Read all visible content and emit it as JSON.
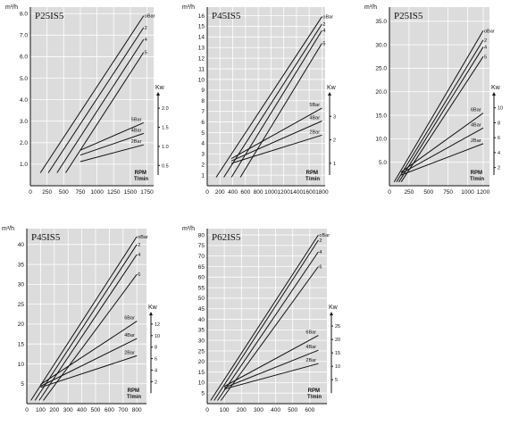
{
  "chart_data": [
    {
      "type": "line",
      "title": "P25IS5",
      "ylabel": "m³/h",
      "x_label": "RPM",
      "x_unit": "T/min",
      "y2_label": "Kw",
      "xlim": [
        0,
        1850
      ],
      "ylim": [
        0,
        8.3
      ],
      "x_ticks": [
        0,
        250,
        500,
        750,
        1000,
        1250,
        1500,
        1750
      ],
      "x_tick_labels": [
        "0",
        "250",
        "500",
        "750",
        "1000",
        "1250",
        "1500",
        "1750"
      ],
      "y_ticks": [
        1,
        2,
        3,
        4,
        5,
        6,
        7,
        8
      ],
      "y_tick_labels": [
        "1.0",
        "2.0",
        "3.0",
        "4.0",
        "5.0",
        "6.0",
        "7.0",
        "8.0"
      ],
      "y2_ticks": [
        0.5,
        1,
        1.5,
        2
      ],
      "y2_tick_labels": [
        "0.5",
        "1.0",
        "1.5",
        "2.0"
      ],
      "y2_range": [
        0.25,
        2.4
      ],
      "flow_series": [
        {
          "name": "oBar",
          "x": [
            150,
            1700
          ],
          "y": [
            0.6,
            7.9
          ]
        },
        {
          "name": "2",
          "x": [
            270,
            1700
          ],
          "y": [
            0.6,
            7.35
          ]
        },
        {
          "name": "4",
          "x": [
            400,
            1700
          ],
          "y": [
            0.6,
            6.8
          ]
        },
        {
          "name": "5",
          "x": [
            530,
            1700
          ],
          "y": [
            0.6,
            6.2
          ]
        }
      ],
      "power_series": [
        {
          "name": "5Bar",
          "x": [
            750,
            1700
          ],
          "y": [
            0.9,
            1.62
          ]
        },
        {
          "name": "4Bar",
          "x": [
            750,
            1700
          ],
          "y": [
            0.77,
            1.34
          ]
        },
        {
          "name": "2Bar",
          "x": [
            750,
            1700
          ],
          "y": [
            0.6,
            1.04
          ]
        }
      ]
    },
    {
      "type": "line",
      "title": "P45IS5",
      "ylabel": "m³/h",
      "x_label": "RPM",
      "x_unit": "T/min",
      "y2_label": "Kw",
      "xlim": [
        0,
        1850
      ],
      "ylim": [
        0,
        16.8
      ],
      "x_ticks": [
        0,
        200,
        400,
        600,
        800,
        1000,
        1200,
        1400,
        1600,
        1800
      ],
      "x_tick_labels": [
        "0",
        "200",
        "400",
        "600",
        "800",
        "1000",
        "1200",
        "1400",
        "1600",
        "1800"
      ],
      "y_ticks": [
        1,
        2,
        3,
        4,
        5,
        6,
        7,
        8,
        9,
        10,
        11,
        12,
        13,
        14,
        15,
        16
      ],
      "y_tick_labels": [
        "1",
        "2",
        "3",
        "4",
        "5",
        "6",
        "7",
        "8",
        "9",
        "10",
        "11",
        "12",
        "13",
        "14",
        "15",
        "16"
      ],
      "y2_ticks": [
        1,
        2,
        3
      ],
      "y2_tick_labels": [
        "1",
        "2",
        "3"
      ],
      "y2_range": [
        0.5,
        4.0
      ],
      "flow_series": [
        {
          "name": "oBar",
          "x": [
            140,
            1800
          ],
          "y": [
            0.8,
            15.9
          ]
        },
        {
          "name": "2",
          "x": [
            260,
            1800
          ],
          "y": [
            0.8,
            15.2
          ]
        },
        {
          "name": "4",
          "x": [
            380,
            1800
          ],
          "y": [
            0.8,
            14.6
          ]
        },
        {
          "name": "5",
          "x": [
            520,
            1800
          ],
          "y": [
            0.8,
            13.4
          ]
        }
      ],
      "power_series": [
        {
          "name": "5Bar",
          "x": [
            380,
            1800
          ],
          "y": [
            1.2,
            3.35
          ]
        },
        {
          "name": "4Bar",
          "x": [
            380,
            1800
          ],
          "y": [
            1.1,
            2.8
          ]
        },
        {
          "name": "2Bar",
          "x": [
            380,
            1800
          ],
          "y": [
            1.0,
            2.2
          ]
        }
      ]
    },
    {
      "type": "line",
      "title": "P25IS5",
      "ylabel": "m³/h",
      "x_label": "RPM",
      "x_unit": "T/min",
      "y2_label": "Kw",
      "xlim": [
        0,
        1280
      ],
      "ylim": [
        0,
        38
      ],
      "x_ticks": [
        0,
        250,
        500,
        750,
        1000,
        1200
      ],
      "x_tick_labels": [
        "0",
        "250",
        "500",
        "750",
        "1000",
        "1200"
      ],
      "y_ticks": [
        5,
        10,
        15,
        20,
        25,
        30,
        35
      ],
      "y_tick_labels": [
        "5.0",
        "10.0",
        "15.0",
        "20.0",
        "25.0",
        "30.0",
        "35.0"
      ],
      "y2_ticks": [
        2,
        4,
        6,
        8,
        10
      ],
      "y2_tick_labels": [
        "2",
        "4",
        "6",
        "8",
        "10"
      ],
      "y2_range": [
        1,
        12
      ],
      "flow_series": [
        {
          "name": "oBar",
          "x": [
            60,
            1200
          ],
          "y": [
            0.8,
            33.0
          ]
        },
        {
          "name": "2",
          "x": [
            90,
            1200
          ],
          "y": [
            0.8,
            31.0
          ]
        },
        {
          "name": "4",
          "x": [
            120,
            1200
          ],
          "y": [
            0.8,
            29.5
          ]
        },
        {
          "name": "5",
          "x": [
            150,
            1200
          ],
          "y": [
            0.8,
            27.5
          ]
        }
      ],
      "power_series": [
        {
          "name": "6Bar",
          "x": [
            150,
            1200
          ],
          "y": [
            1.4,
            9.3
          ]
        },
        {
          "name": "4Bar",
          "x": [
            150,
            1200
          ],
          "y": [
            1.2,
            7.3
          ]
        },
        {
          "name": "2Bar",
          "x": [
            150,
            1200
          ],
          "y": [
            1.0,
            5.2
          ]
        }
      ]
    },
    {
      "type": "line",
      "title": "P45IS5",
      "ylabel": "m³/h",
      "x_label": "RPM",
      "x_unit": "T/min",
      "y2_label": "Kw",
      "xlim": [
        0,
        870
      ],
      "ylim": [
        0,
        44
      ],
      "x_ticks": [
        0,
        100,
        200,
        300,
        400,
        500,
        600,
        700,
        800
      ],
      "x_tick_labels": [
        "0",
        "100",
        "200",
        "300",
        "400",
        "500",
        "600",
        "700",
        "800"
      ],
      "y_ticks": [
        5,
        10,
        15,
        20,
        25,
        30,
        35,
        40
      ],
      "y_tick_labels": [
        "5",
        "10",
        "15",
        "20",
        "25",
        "30",
        "35",
        "40"
      ],
      "y2_ticks": [
        2,
        4,
        6,
        8,
        10,
        12
      ],
      "y2_tick_labels": [
        "2",
        "4",
        "6",
        "8",
        "10",
        "12"
      ],
      "y2_range": [
        0,
        14
      ],
      "flow_series": [
        {
          "name": "oBar",
          "x": [
            30,
            800
          ],
          "y": [
            0.8,
            42.0
          ]
        },
        {
          "name": "2",
          "x": [
            60,
            800
          ],
          "y": [
            0.8,
            40.0
          ]
        },
        {
          "name": "4",
          "x": [
            90,
            800
          ],
          "y": [
            0.8,
            37.5
          ]
        },
        {
          "name": "6",
          "x": [
            120,
            800
          ],
          "y": [
            0.8,
            32.5
          ]
        }
      ],
      "power_series": [
        {
          "name": "6Bar",
          "x": [
            100,
            800
          ],
          "y": [
            1.5,
            12.5
          ]
        },
        {
          "name": "4Bar",
          "x": [
            100,
            800
          ],
          "y": [
            1.2,
            9.5
          ]
        },
        {
          "name": "2Bar",
          "x": [
            100,
            800
          ],
          "y": [
            1.0,
            6.5
          ]
        }
      ]
    },
    {
      "type": "line",
      "title": "P62IS5",
      "ylabel": "m³/h",
      "x_label": "RPM",
      "x_unit": "T/min",
      "y2_label": "Kw",
      "xlim": [
        0,
        700
      ],
      "ylim": [
        0,
        83
      ],
      "x_ticks": [
        0,
        100,
        200,
        300,
        400,
        500,
        600
      ],
      "x_tick_labels": [
        "0",
        "100",
        "200",
        "300",
        "400",
        "500",
        "600"
      ],
      "y_ticks": [
        5,
        10,
        15,
        20,
        25,
        30,
        35,
        40,
        45,
        50,
        55,
        60,
        65,
        70,
        75,
        80
      ],
      "y_tick_labels": [
        "5",
        "10",
        "15",
        "20",
        "25",
        "30",
        "35",
        "40",
        "45",
        "50",
        "55",
        "60",
        "65",
        "70",
        "75",
        "80"
      ],
      "y2_ticks": [
        5,
        10,
        15,
        20,
        25
      ],
      "y2_tick_labels": [
        "5",
        "10",
        "15",
        "20",
        "25"
      ],
      "y2_range": [
        0,
        30
      ],
      "flow_series": [
        {
          "name": "oBar",
          "x": [
            20,
            650
          ],
          "y": [
            1.5,
            80.0
          ]
        },
        {
          "name": "2",
          "x": [
            40,
            650
          ],
          "y": [
            1.5,
            77.5
          ]
        },
        {
          "name": "4",
          "x": [
            60,
            650
          ],
          "y": [
            1.5,
            72.0
          ]
        },
        {
          "name": "6",
          "x": [
            80,
            650
          ],
          "y": [
            1.5,
            65.0
          ]
        }
      ],
      "power_series": [
        {
          "name": "6Bar",
          "x": [
            100,
            650
          ],
          "y": [
            2.5,
            21.5
          ]
        },
        {
          "name": "4Bar",
          "x": [
            100,
            650
          ],
          "y": [
            2.0,
            16.0
          ]
        },
        {
          "name": "2Bar",
          "x": [
            100,
            650
          ],
          "y": [
            1.5,
            11.0
          ]
        }
      ]
    }
  ]
}
